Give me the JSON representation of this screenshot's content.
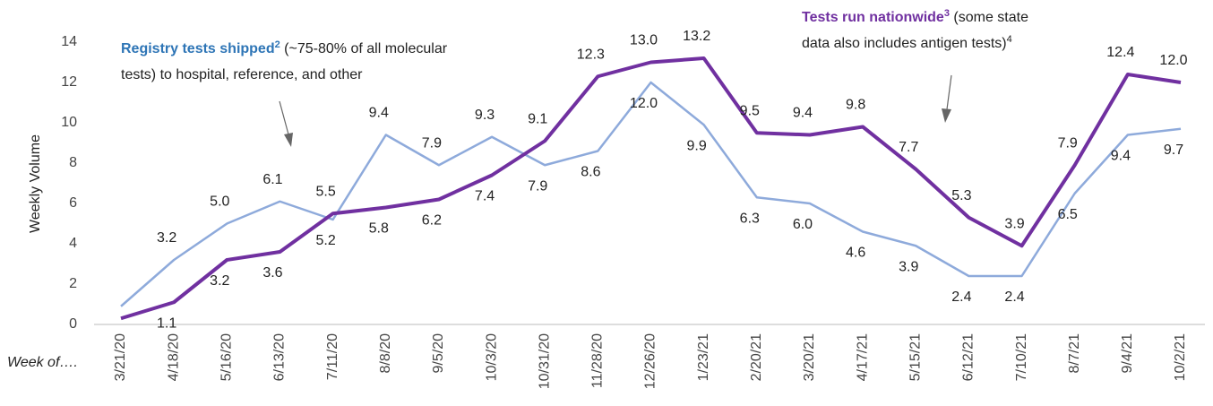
{
  "chart_data": {
    "type": "line",
    "y_label": "Weekly Volume",
    "x_label": "Week of….",
    "categories": [
      "3/21/20",
      "4/18/20",
      "5/16/20",
      "6/13/20",
      "7/11/20",
      "8/8/20",
      "9/5/20",
      "10/3/20",
      "10/31/20",
      "11/28/20",
      "12/26/20",
      "1/23/21",
      "2/20/21",
      "3/20/21",
      "4/17/21",
      "5/15/21",
      "6/12/21",
      "7/10/21",
      "8/7/21",
      "9/4/21",
      "10/2/21"
    ],
    "series": [
      {
        "name": "Registry tests shipped",
        "color": "#8eaadb",
        "values": [
          0.9,
          3.2,
          5.0,
          6.1,
          5.2,
          9.4,
          7.9,
          9.3,
          7.9,
          8.6,
          12.0,
          9.9,
          6.3,
          6.0,
          4.6,
          3.9,
          2.4,
          2.4,
          6.5,
          9.4,
          9.7
        ],
        "value_labels": [
          null,
          "3.2",
          "5.0",
          "6.1",
          "5.2",
          "9.4",
          "7.9",
          "9.3",
          "7.9",
          "8.6",
          "12.0",
          "9.9",
          "6.3",
          "6.0",
          "4.6",
          "3.9",
          "2.4",
          "2.4",
          "6.5",
          "9.4",
          "9.7"
        ]
      },
      {
        "name": "Tests run nationwide",
        "color": "#7030a0",
        "values": [
          0.3,
          1.1,
          3.2,
          3.6,
          5.5,
          5.8,
          6.2,
          7.4,
          9.1,
          12.3,
          13.0,
          13.2,
          9.5,
          9.4,
          9.8,
          7.7,
          5.3,
          3.9,
          7.9,
          12.4,
          12.0
        ],
        "value_labels": [
          null,
          "1.1",
          "3.2",
          "3.6",
          "5.5",
          "5.8",
          "6.2",
          "7.4",
          "9.1",
          "12.3",
          "13.0",
          "13.2",
          "9.5",
          "9.4",
          "9.8",
          "7.7",
          "5.3",
          "3.9",
          "7.9",
          "12.4",
          "12.0"
        ]
      }
    ],
    "annotations": [
      {
        "bold": "Registry tests shipped",
        "sup": "2",
        "lines": [
          " (~75-80% of all molecular",
          "tests) to hospital, reference, and other"
        ],
        "color": "#2e75b6"
      },
      {
        "bold": "Tests run nationwide",
        "sup": "3",
        "lines": [
          " (some state",
          "data also includes antigen tests)"
        ],
        "tail_sup": "4",
        "color": "#7030a0"
      }
    ],
    "ylim": [
      0,
      14
    ],
    "yticks": [
      0,
      2,
      4,
      6,
      8,
      10,
      12,
      14
    ]
  }
}
